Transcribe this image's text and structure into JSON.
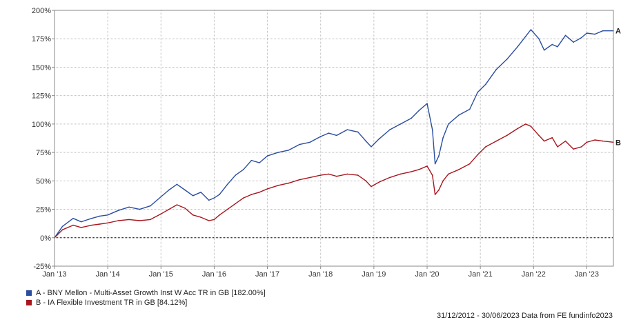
{
  "chart_data": {
    "type": "line",
    "ylim": [
      -25,
      200
    ],
    "y_ticks": [
      -25,
      0,
      25,
      50,
      75,
      100,
      125,
      150,
      175,
      200
    ],
    "y_tick_labels": [
      "-25%",
      "0%",
      "25%",
      "50%",
      "75%",
      "100%",
      "125%",
      "150%",
      "175%",
      "200%"
    ],
    "xlim": [
      2013.0,
      2023.5
    ],
    "x_ticks": [
      2013,
      2014,
      2015,
      2016,
      2017,
      2018,
      2019,
      2020,
      2021,
      2022,
      2023
    ],
    "x_tick_labels": [
      "Jan '13",
      "Jan '14",
      "Jan '15",
      "Jan '16",
      "Jan '17",
      "Jan '18",
      "Jan '19",
      "Jan '20",
      "Jan '21",
      "Jan '22",
      "Jan '23"
    ],
    "grid": true,
    "series": [
      {
        "id": "A",
        "end_label": "A",
        "color": "#2a4da0",
        "legend": "A - BNY Mellon - Multi-Asset Growth Inst W Acc TR in GB [182.00%]",
        "x": [
          2013.0,
          2013.15,
          2013.35,
          2013.5,
          2013.7,
          2013.85,
          2014.0,
          2014.2,
          2014.4,
          2014.6,
          2014.8,
          2015.0,
          2015.15,
          2015.3,
          2015.45,
          2015.6,
          2015.75,
          2015.9,
          2016.0,
          2016.1,
          2016.25,
          2016.4,
          2016.55,
          2016.7,
          2016.85,
          2017.0,
          2017.2,
          2017.4,
          2017.6,
          2017.8,
          2018.0,
          2018.15,
          2018.3,
          2018.5,
          2018.7,
          2018.85,
          2018.95,
          2019.1,
          2019.3,
          2019.5,
          2019.7,
          2019.85,
          2020.0,
          2020.1,
          2020.15,
          2020.22,
          2020.3,
          2020.4,
          2020.6,
          2020.8,
          2020.95,
          2021.1,
          2021.3,
          2021.5,
          2021.7,
          2021.85,
          2021.95,
          2022.1,
          2022.2,
          2022.35,
          2022.45,
          2022.6,
          2022.75,
          2022.9,
          2023.0,
          2023.15,
          2023.3,
          2023.5
        ],
        "y": [
          0,
          10,
          17,
          14,
          17,
          19,
          20,
          24,
          27,
          25,
          28,
          36,
          42,
          47,
          42,
          37,
          40,
          33,
          35,
          38,
          47,
          55,
          60,
          68,
          66,
          72,
          75,
          77,
          82,
          84,
          89,
          92,
          90,
          95,
          93,
          85,
          80,
          87,
          95,
          100,
          105,
          112,
          118,
          95,
          65,
          72,
          88,
          100,
          108,
          113,
          128,
          135,
          148,
          157,
          168,
          177,
          183,
          175,
          165,
          170,
          168,
          178,
          172,
          176,
          180,
          179,
          182,
          182
        ]
      },
      {
        "id": "B",
        "end_label": "B",
        "color": "#a8161e",
        "legend": "B - IA Flexible Investment TR in GB [84.12%]",
        "x": [
          2013.0,
          2013.15,
          2013.35,
          2013.5,
          2013.7,
          2013.85,
          2014.0,
          2014.2,
          2014.4,
          2014.6,
          2014.8,
          2015.0,
          2015.15,
          2015.3,
          2015.45,
          2015.6,
          2015.75,
          2015.9,
          2016.0,
          2016.1,
          2016.25,
          2016.4,
          2016.55,
          2016.7,
          2016.85,
          2017.0,
          2017.2,
          2017.4,
          2017.6,
          2017.8,
          2018.0,
          2018.15,
          2018.3,
          2018.5,
          2018.7,
          2018.85,
          2018.95,
          2019.1,
          2019.3,
          2019.5,
          2019.7,
          2019.85,
          2020.0,
          2020.1,
          2020.15,
          2020.22,
          2020.3,
          2020.4,
          2020.6,
          2020.8,
          2020.95,
          2021.1,
          2021.3,
          2021.5,
          2021.7,
          2021.85,
          2021.95,
          2022.1,
          2022.2,
          2022.35,
          2022.45,
          2022.6,
          2022.75,
          2022.9,
          2023.0,
          2023.15,
          2023.3,
          2023.5
        ],
        "y": [
          0,
          7,
          11,
          9,
          11,
          12,
          13,
          15,
          16,
          15,
          16,
          21,
          25,
          29,
          26,
          20,
          18,
          15,
          16,
          20,
          25,
          30,
          35,
          38,
          40,
          43,
          46,
          48,
          51,
          53,
          55,
          56,
          54,
          56,
          55,
          50,
          45,
          49,
          53,
          56,
          58,
          60,
          63,
          55,
          38,
          42,
          50,
          56,
          60,
          65,
          73,
          80,
          85,
          90,
          96,
          100,
          98,
          90,
          85,
          88,
          80,
          85,
          78,
          80,
          84,
          86,
          85,
          84
        ]
      }
    ]
  },
  "footer": {
    "date_range": "31/12/2012 - 30/06/2023 Data from FE fundinfo2023"
  }
}
